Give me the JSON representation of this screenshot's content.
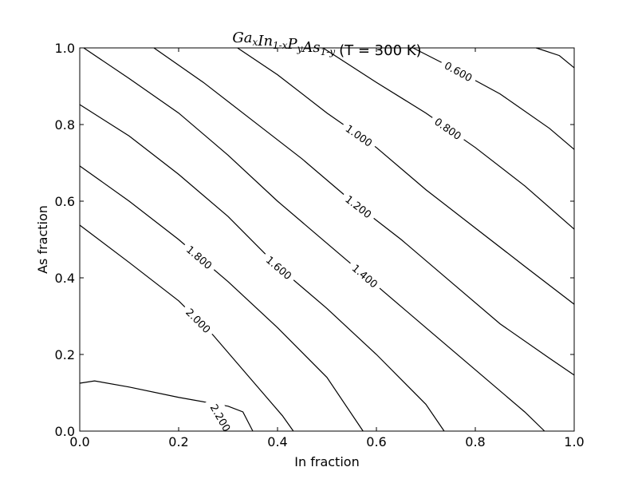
{
  "chart_data": {
    "type": "contour",
    "title_math": {
      "parts": [
        [
          "Ga",
          "x"
        ],
        [
          "In",
          "1-x"
        ],
        [
          "P",
          "y"
        ],
        [
          "As",
          "1-y"
        ]
      ]
    },
    "title_suffix": "(T = 300 K)",
    "xlabel": "In fraction",
    "ylabel": "As fraction",
    "xlim": [
      0,
      1
    ],
    "ylim": [
      0,
      1
    ],
    "xticks": [
      "0.0",
      "0.2",
      "0.4",
      "0.6",
      "0.8",
      "1.0"
    ],
    "yticks": [
      "0.0",
      "0.2",
      "0.4",
      "0.6",
      "0.8",
      "1.0"
    ],
    "grid": false,
    "line_color": "#000000",
    "contours": [
      {
        "level": 2.2,
        "label": "2.200",
        "points": [
          [
            0,
            0.125
          ],
          [
            0.03,
            0.131
          ],
          [
            0.1,
            0.115
          ],
          [
            0.2,
            0.088
          ],
          [
            0.3,
            0.065
          ],
          [
            0.33,
            0.05
          ],
          [
            0.35,
            0.0
          ]
        ]
      },
      {
        "level": 2.0,
        "label": "2.000",
        "points": [
          [
            0,
            0.5375
          ],
          [
            0.1,
            0.44
          ],
          [
            0.2,
            0.34
          ],
          [
            0.27,
            0.25
          ],
          [
            0.35,
            0.13
          ],
          [
            0.41,
            0.04
          ],
          [
            0.432,
            0
          ]
        ]
      },
      {
        "level": 1.8,
        "label": "1.800",
        "points": [
          [
            0,
            0.692
          ],
          [
            0.1,
            0.6
          ],
          [
            0.2,
            0.5
          ],
          [
            0.3,
            0.39
          ],
          [
            0.4,
            0.27
          ],
          [
            0.5,
            0.14
          ],
          [
            0.573,
            0
          ]
        ]
      },
      {
        "level": 1.6,
        "label": "1.600",
        "points": [
          [
            0,
            0.852
          ],
          [
            0.1,
            0.77
          ],
          [
            0.2,
            0.67
          ],
          [
            0.3,
            0.56
          ],
          [
            0.4,
            0.43
          ],
          [
            0.5,
            0.32
          ],
          [
            0.6,
            0.2
          ],
          [
            0.7,
            0.07
          ],
          [
            0.737,
            0
          ]
        ]
      },
      {
        "level": 1.4,
        "label": "1.400",
        "points": [
          [
            0.008,
            1
          ],
          [
            0.1,
            0.92
          ],
          [
            0.2,
            0.83
          ],
          [
            0.3,
            0.72
          ],
          [
            0.4,
            0.6
          ],
          [
            0.5,
            0.49
          ],
          [
            0.6,
            0.38
          ],
          [
            0.7,
            0.27
          ],
          [
            0.8,
            0.16
          ],
          [
            0.9,
            0.05
          ],
          [
            0.94,
            0
          ]
        ]
      },
      {
        "level": 1.2,
        "label": "1.200",
        "points": [
          [
            0.15,
            1
          ],
          [
            0.25,
            0.91
          ],
          [
            0.35,
            0.81
          ],
          [
            0.45,
            0.71
          ],
          [
            0.55,
            0.6
          ],
          [
            0.65,
            0.5
          ],
          [
            0.75,
            0.39
          ],
          [
            0.85,
            0.28
          ],
          [
            0.95,
            0.19
          ],
          [
            1,
            0.146
          ]
        ]
      },
      {
        "level": 1.0,
        "label": "1.000",
        "points": [
          [
            0.319,
            1
          ],
          [
            0.4,
            0.93
          ],
          [
            0.5,
            0.83
          ],
          [
            0.6,
            0.74
          ],
          [
            0.7,
            0.63
          ],
          [
            0.8,
            0.53
          ],
          [
            0.9,
            0.43
          ],
          [
            1,
            0.331
          ]
        ]
      },
      {
        "level": 0.8,
        "label": "0.800",
        "points": [
          [
            0.492,
            1
          ],
          [
            0.6,
            0.91
          ],
          [
            0.7,
            0.83
          ],
          [
            0.8,
            0.74
          ],
          [
            0.9,
            0.64
          ],
          [
            1,
            0.527
          ]
        ]
      },
      {
        "level": 0.6,
        "label": "0.600",
        "points": [
          [
            0.674,
            1
          ],
          [
            0.75,
            0.95
          ],
          [
            0.85,
            0.88
          ],
          [
            0.95,
            0.79
          ],
          [
            1,
            0.735
          ]
        ]
      },
      {
        "level": 0.4,
        "label": "",
        "points": [
          [
            0.923,
            1
          ],
          [
            0.97,
            0.98
          ],
          [
            1,
            0.948
          ]
        ]
      }
    ]
  }
}
